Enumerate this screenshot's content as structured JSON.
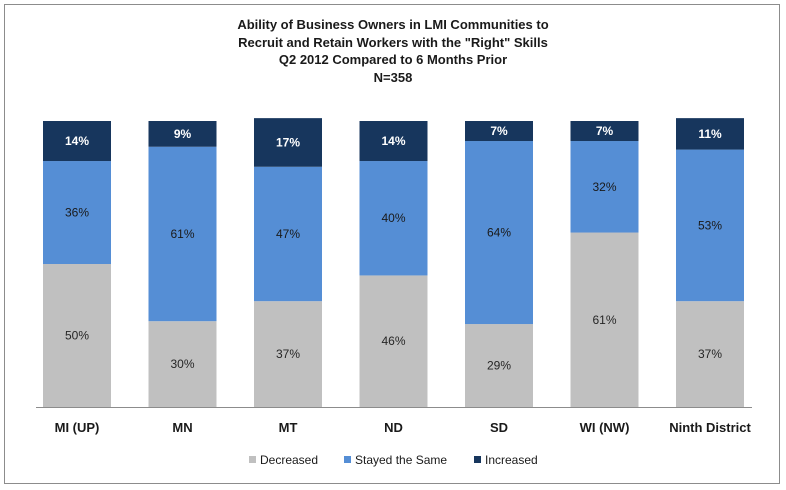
{
  "chart_data": {
    "type": "bar",
    "stacked": true,
    "title_lines": [
      "Ability of Business Owners in LMI Communities to",
      "Recruit and Retain Workers with the \"Right\" Skills",
      "Q2 2012 Compared to 6 Months Prior",
      "N=358"
    ],
    "categories": [
      "MI (UP)",
      "MN",
      "MT",
      "ND",
      "SD",
      "WI (NW)",
      "Ninth District"
    ],
    "series": [
      {
        "name": "Decreased",
        "color": "#c0c0c0",
        "label_color": "#262626",
        "values": [
          50,
          30,
          37,
          46,
          29,
          61,
          37
        ],
        "labels": [
          "50%",
          "30%",
          "37%",
          "46%",
          "29%",
          "61%",
          "37%"
        ]
      },
      {
        "name": "Stayed the Same",
        "color": "#558ed5",
        "label_color": "#1a1a1a",
        "values": [
          36,
          61,
          47,
          40,
          64,
          32,
          53
        ],
        "labels": [
          "36%",
          "61%",
          "47%",
          "40%",
          "64%",
          "32%",
          "53%"
        ]
      },
      {
        "name": "Increased",
        "color": "#17365d",
        "label_color": "#ffffff",
        "values": [
          14,
          9,
          17,
          14,
          7,
          7,
          11
        ],
        "labels": [
          "14%",
          "9%",
          "17%",
          "14%",
          "7%",
          "7%",
          "11%"
        ]
      }
    ],
    "ylim": [
      0,
      100
    ],
    "grid": false,
    "legend": "bottom"
  }
}
